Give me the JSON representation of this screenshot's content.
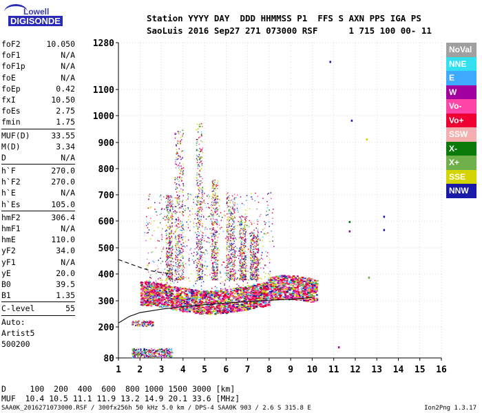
{
  "logo": {
    "line1": "Lowell",
    "line2": "DIGISONDE"
  },
  "header": {
    "row1": "Station YYYY DAY  DDD HHMMSS P1  FFS S AXN PPS IGA PS",
    "row2": "SaoLuis 2016 Sep27 271 073000 RSF      1 715 100 00- 11"
  },
  "params": [
    [
      [
        "foF2",
        "10.050"
      ],
      [
        "foF1",
        "N/A"
      ],
      [
        "foF1p",
        "N/A"
      ],
      [
        "foE",
        "N/A"
      ],
      [
        "foEp",
        "0.42"
      ],
      [
        "fxI",
        "10.50"
      ],
      [
        "foEs",
        "2.75"
      ],
      [
        "fmin",
        "1.75"
      ]
    ],
    [
      [
        "MUF(D)",
        "33.55"
      ],
      [
        "M(D)",
        "3.34"
      ],
      [
        "D",
        "N/A"
      ]
    ],
    [
      [
        "h`F",
        "270.0"
      ],
      [
        "h`F2",
        "270.0"
      ],
      [
        "h`E",
        "N/A"
      ],
      [
        "h`Es",
        "105.0"
      ]
    ],
    [
      [
        "hmF2",
        "306.4"
      ],
      [
        "hmF1",
        "N/A"
      ],
      [
        "hmE",
        "110.0"
      ],
      [
        "yF2",
        "34.0"
      ],
      [
        "yF1",
        "N/A"
      ],
      [
        "yE",
        "20.0"
      ],
      [
        "B0",
        "39.5"
      ],
      [
        "B1",
        "1.35"
      ]
    ],
    [
      [
        "C-level",
        "55"
      ]
    ]
  ],
  "autoscale": {
    "l1": "Auto:",
    "l2": "Artist5",
    "l3": "500200"
  },
  "bottom": {
    "d_row": "D     100  200  400  600  800 1000 1500 3000 [km]",
    "muf_row": "MUF  10.4 10.5 11.1 11.9 13.2 14.9 20.1 33.6 [MHz]",
    "footer": "SAA0K_2016271073000.RSF / 300fx256h 50 kHz 5.0 km / DPS-4 SAA0K 903 / 2.6 S 315.8 E",
    "version": "Ion2Png 1.3.17"
  },
  "legend": [
    {
      "label": "NoVal",
      "color": "#a0a0a0"
    },
    {
      "label": "NNE",
      "color": "#33e0f0"
    },
    {
      "label": "E",
      "color": "#3fa9ff"
    },
    {
      "label": "W",
      "color": "#a2009e"
    },
    {
      "label": "Vo-",
      "color": "#ff44a8"
    },
    {
      "label": "Vo+",
      "color": "#ee0033"
    },
    {
      "label": "SSW",
      "color": "#f4b0b0"
    },
    {
      "label": "X-",
      "color": "#0a7a0a"
    },
    {
      "label": "X+",
      "color": "#6fb04a"
    },
    {
      "label": "SSE",
      "color": "#d4d400"
    },
    {
      "label": "NNW",
      "color": "#1a1aa8"
    }
  ],
  "chart_data": {
    "type": "scatter",
    "xlabel": "",
    "ylabel": "",
    "xlim": [
      1,
      16
    ],
    "ylim": [
      80,
      1280
    ],
    "xticks": [
      1,
      2,
      3,
      4,
      5,
      6,
      7,
      8,
      9,
      10,
      11,
      12,
      13,
      14,
      15,
      16
    ],
    "yticks": [
      80,
      200,
      300,
      400,
      500,
      600,
      700,
      800,
      900,
      1000,
      1100,
      1280
    ],
    "grid": true,
    "traces": [
      {
        "name": "",
        "x": [
          1.0,
          1.5,
          2,
          3,
          4,
          5,
          6,
          7,
          8,
          9,
          10
        ],
        "y": [
          215,
          240,
          255,
          268,
          278,
          285,
          291,
          297,
          302,
          306,
          312
        ]
      },
      {
        "name": "",
        "x": [
          1.0,
          1.5,
          2,
          2.5,
          3,
          3.5
        ],
        "y": [
          455,
          440,
          425,
          412,
          405,
          400
        ]
      }
    ],
    "clusters": [
      {
        "x": [
          2.0,
          10.0
        ],
        "y": [
          270,
          420
        ],
        "density": "high"
      },
      {
        "x": [
          3.2,
          6.5
        ],
        "y": [
          420,
          1000
        ],
        "density": "medium"
      },
      {
        "x": [
          1.6,
          3.5
        ],
        "y": [
          80,
          120
        ],
        "density": "medium"
      },
      {
        "x": [
          1.6,
          2.6
        ],
        "y": [
          200,
          230
        ],
        "density": "low"
      }
    ],
    "isolated_points": [
      {
        "x": 10.8,
        "y": 1210,
        "color": "#1a1aa8"
      },
      {
        "x": 11.8,
        "y": 985,
        "color": "#1a1aa8"
      },
      {
        "x": 12.5,
        "y": 915,
        "color": "#d4d400"
      },
      {
        "x": 11.7,
        "y": 600,
        "color": "#0a7a0a"
      },
      {
        "x": 13.3,
        "y": 620,
        "color": "#1a1aa8"
      },
      {
        "x": 13.3,
        "y": 570,
        "color": "#1a1aa8"
      },
      {
        "x": 11.7,
        "y": 565,
        "color": "#a2009e"
      },
      {
        "x": 12.6,
        "y": 390,
        "color": "#6fb04a"
      },
      {
        "x": 11.2,
        "y": 125,
        "color": "#a2009e"
      }
    ]
  }
}
